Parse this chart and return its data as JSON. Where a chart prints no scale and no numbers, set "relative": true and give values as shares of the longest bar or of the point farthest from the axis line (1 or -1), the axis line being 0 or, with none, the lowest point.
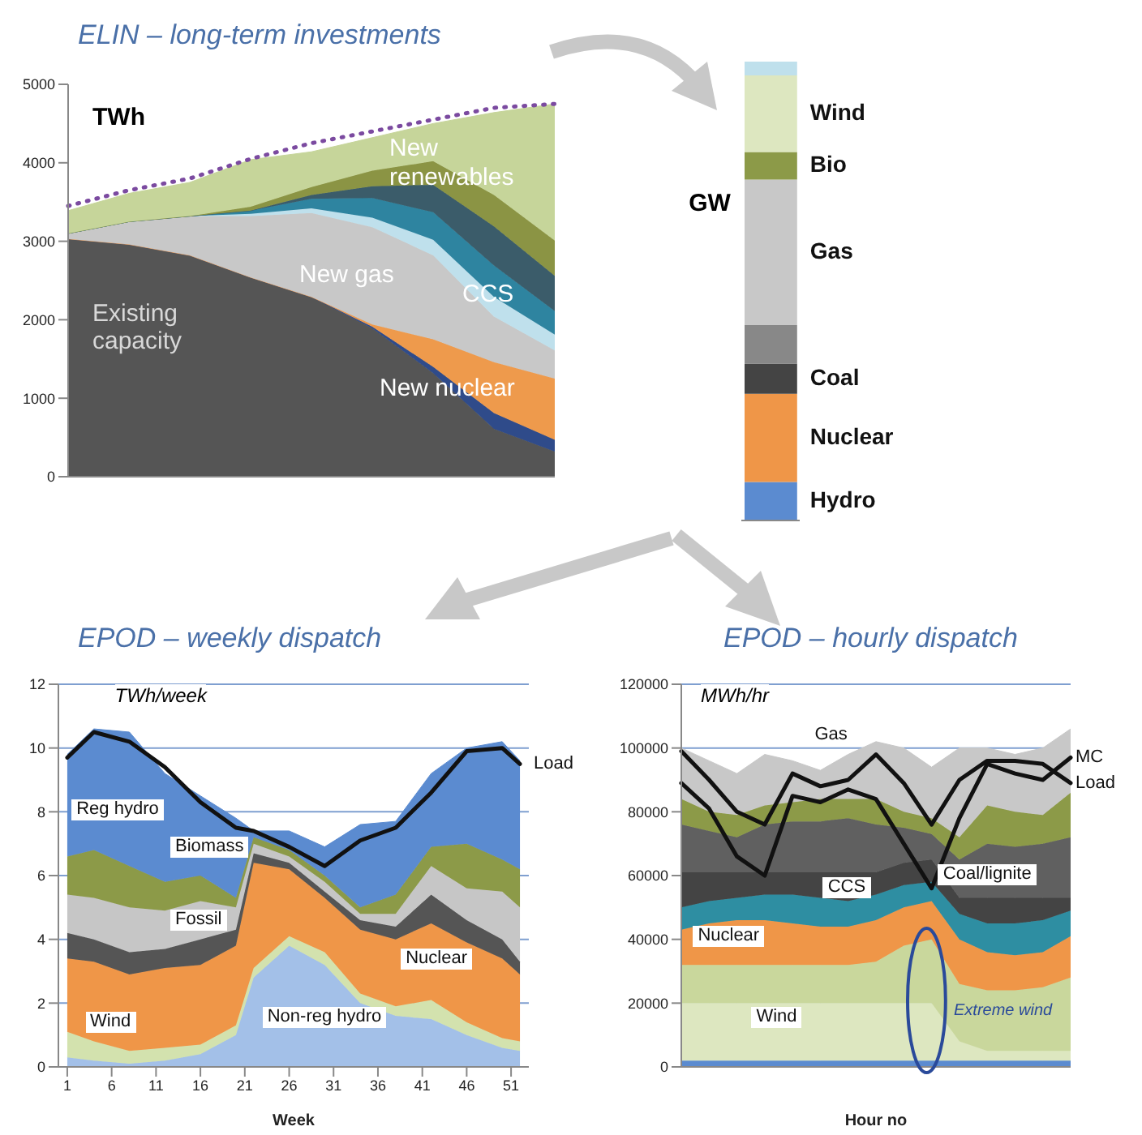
{
  "chart_data": [
    {
      "type": "area",
      "title": "ELIN – long-term investments",
      "ylabel": "TWh",
      "stacked": true,
      "categories": [
        null,
        null,
        null,
        null,
        null,
        null,
        null,
        null,
        null
      ],
      "tick_labels": "y",
      "ylim": [
        0,
        5000
      ],
      "yticks": [
        0,
        1000,
        2000,
        3000,
        4000,
        5000
      ],
      "series": [
        {
          "name": "Existing capacity",
          "color": "#555555",
          "values": [
            3030,
            2960,
            2820,
            2540,
            2290,
            1890,
            1320,
            610,
            320
          ]
        },
        {
          "color": "#2f4b8a",
          "values": [
            0,
            0,
            0,
            0,
            0,
            20,
            80,
            200,
            150
          ]
        },
        {
          "name": "New nuclear",
          "color": "#ee9a4c",
          "values": [
            0,
            0,
            0,
            0,
            0,
            30,
            350,
            650,
            780
          ]
        },
        {
          "name": "New gas",
          "color": "#c8c8c8",
          "values": [
            70,
            290,
            500,
            780,
            1070,
            1240,
            1070,
            580,
            360
          ]
        },
        {
          "color": "#bfe0ec",
          "values": [
            0,
            0,
            0,
            30,
            60,
            120,
            200,
            250,
            200
          ]
        },
        {
          "name": "CCS",
          "color": "#2e84a0",
          "values": [
            0,
            0,
            0,
            40,
            120,
            250,
            350,
            400,
            300
          ]
        },
        {
          "color": "#3b5c6a",
          "values": [
            0,
            0,
            0,
            0,
            50,
            150,
            350,
            500,
            450
          ]
        },
        {
          "color": "#8b9444",
          "values": [
            0,
            0,
            0,
            50,
            100,
            200,
            300,
            400,
            450
          ]
        },
        {
          "name": "New renewables",
          "color": "#c6d59a",
          "values": [
            290,
            360,
            430,
            600,
            450,
            420,
            480,
            1050,
            1740
          ]
        },
        {
          "type": "line",
          "color": "#7b4aa0",
          "line_style": "dotted",
          "values": [
            3450,
            3650,
            3800,
            4050,
            4250,
            4400,
            4550,
            4700,
            4750
          ]
        }
      ]
    },
    {
      "type": "bar",
      "ylabel": "GW",
      "stacked": true,
      "relative": true,
      "categories": [
        null
      ],
      "series": [
        {
          "name": "Hydro",
          "color": "#5b8bd0",
          "values": [
            0.084
          ]
        },
        {
          "name": "Nuclear",
          "color": "#ef9648",
          "values": [
            0.192
          ]
        },
        {
          "name": "Coal",
          "color": "#444444",
          "values": [
            0.066
          ]
        },
        {
          "color": "#888888",
          "values": [
            0.084
          ]
        },
        {
          "name": "Gas",
          "color": "#c8c8c8",
          "values": [
            0.317
          ]
        },
        {
          "name": "Bio",
          "color": "#8c9a48",
          "values": [
            0.06
          ]
        },
        {
          "name": "Wind",
          "color": "#dde7c0",
          "values": [
            0.167
          ]
        },
        {
          "color": "#bfe0ec",
          "values": [
            0.03
          ]
        }
      ]
    },
    {
      "type": "area",
      "title": "EPOD – weekly dispatch",
      "ylabel": "TWh/week",
      "xlabel": "Week",
      "stacked": true,
      "grid": "y",
      "x": [
        1,
        4,
        8,
        12,
        16,
        20,
        22,
        26,
        30,
        34,
        38,
        42,
        46,
        50,
        52
      ],
      "xlim": [
        0,
        53
      ],
      "xticks": [
        1,
        6,
        11,
        16,
        21,
        26,
        31,
        36,
        41,
        46,
        51
      ],
      "ylim": [
        0,
        12
      ],
      "yticks": [
        0,
        2,
        4,
        6,
        8,
        10,
        12
      ],
      "series": [
        {
          "name": "Non-reg hydro",
          "color": "#a3c0e8",
          "values": [
            0.3,
            0.2,
            0.1,
            0.2,
            0.4,
            1.0,
            2.8,
            3.8,
            3.2,
            2.0,
            1.6,
            1.5,
            1.0,
            0.6,
            0.5
          ]
        },
        {
          "name": "Wind",
          "color": "#d3e2ae",
          "values": [
            0.8,
            0.6,
            0.4,
            0.4,
            0.3,
            0.3,
            0.3,
            0.3,
            0.4,
            0.3,
            0.3,
            0.6,
            0.4,
            0.3,
            0.3
          ]
        },
        {
          "name": "Nuclear",
          "color": "#ef9648",
          "values": [
            2.3,
            2.5,
            2.4,
            2.5,
            2.5,
            2.5,
            3.3,
            2.1,
            1.7,
            2.0,
            2.1,
            2.4,
            2.5,
            2.5,
            2.1
          ]
        },
        {
          "color": "#555555",
          "values": [
            0.8,
            0.7,
            0.7,
            0.6,
            0.8,
            0.5,
            0.3,
            0.2,
            0.2,
            0.3,
            0.4,
            0.9,
            0.7,
            0.6,
            0.4
          ]
        },
        {
          "name": "Fossil",
          "color": "#c6c6c6",
          "values": [
            1.2,
            1.3,
            1.4,
            1.2,
            1.2,
            0.7,
            0.3,
            0.2,
            0.3,
            0.2,
            0.4,
            0.9,
            1.0,
            1.5,
            1.7
          ]
        },
        {
          "name": "Biomass",
          "color": "#8c9a48",
          "values": [
            1.2,
            1.5,
            1.3,
            0.9,
            0.8,
            0.3,
            0.2,
            0.2,
            0.2,
            0.2,
            0.6,
            0.6,
            1.4,
            1.0,
            1.2
          ]
        },
        {
          "name": "Reg hydro",
          "color": "#5b8bd0",
          "values": [
            3.2,
            3.8,
            4.2,
            3.4,
            2.5,
            2.5,
            0.2,
            0.6,
            0.9,
            2.6,
            2.3,
            2.3,
            3.0,
            3.7,
            3.4
          ]
        },
        {
          "type": "line",
          "name": "Load",
          "color": "#111111",
          "values": [
            9.7,
            10.5,
            10.2,
            9.4,
            8.3,
            7.5,
            7.4,
            6.9,
            6.3,
            7.1,
            7.5,
            8.6,
            9.9,
            10.0,
            9.5
          ]
        }
      ]
    },
    {
      "type": "area",
      "title": "EPOD – hourly dispatch",
      "ylabel": "MWh/hr",
      "xlabel": "Hour no",
      "stacked": true,
      "grid": "y",
      "categories": [
        null,
        null,
        null,
        null,
        null,
        null,
        null,
        null,
        null,
        null,
        null,
        null,
        null,
        null,
        null
      ],
      "tick_labels": "y",
      "ylim": [
        0,
        120000
      ],
      "yticks": [
        0,
        20000,
        40000,
        60000,
        80000,
        100000,
        120000
      ],
      "annotations": [
        "Extreme wind"
      ],
      "series": [
        {
          "color": "#5b8bd0",
          "values": [
            2000,
            2000,
            2000,
            2000,
            2000,
            2000,
            2000,
            2000,
            2000,
            2000,
            2000,
            2000,
            2000,
            2000,
            2000
          ]
        },
        {
          "name": "Wind",
          "color": "#dde7c0",
          "values": [
            18000,
            18000,
            18000,
            18000,
            18000,
            18000,
            18000,
            18000,
            18000,
            18000,
            6000,
            3000,
            3000,
            3000,
            3000
          ]
        },
        {
          "color": "#c9d79c",
          "values": [
            12000,
            12000,
            12000,
            12000,
            12000,
            12000,
            12000,
            13000,
            18000,
            20000,
            18000,
            19000,
            19000,
            20000,
            23000
          ]
        },
        {
          "name": "Nuclear",
          "color": "#ef9648",
          "values": [
            11000,
            13000,
            14000,
            14000,
            13000,
            12000,
            12000,
            13000,
            12000,
            12000,
            14000,
            12000,
            11000,
            11000,
            13000
          ]
        },
        {
          "name": "CCS",
          "color": "#2e8ea2",
          "values": [
            7000,
            7000,
            7000,
            8000,
            9000,
            9000,
            8000,
            8000,
            7000,
            6000,
            8000,
            9000,
            10000,
            10000,
            8000
          ]
        },
        {
          "name": "Coal/lignite",
          "color": "#444444",
          "values": [
            11000,
            9000,
            8000,
            7000,
            7000,
            8000,
            9000,
            7000,
            7000,
            7000,
            5000,
            8000,
            8000,
            7000,
            4000
          ]
        },
        {
          "color": "#606060",
          "values": [
            15000,
            13000,
            11000,
            15000,
            16000,
            16000,
            17000,
            15000,
            11000,
            8000,
            12000,
            17000,
            16000,
            17000,
            19000
          ]
        },
        {
          "color": "#8c9a48",
          "values": [
            8000,
            6000,
            7000,
            6000,
            6000,
            7000,
            6000,
            8000,
            5000,
            5000,
            7000,
            12000,
            11000,
            9000,
            14000
          ]
        },
        {
          "name": "Gas",
          "color": "#c8c8c8",
          "values": [
            16000,
            16000,
            13000,
            16000,
            13000,
            9000,
            14000,
            18000,
            20000,
            16000,
            28000,
            18000,
            18000,
            21000,
            20000
          ]
        },
        {
          "type": "line",
          "name": "MC",
          "color": "#111111",
          "values": [
            89000,
            81000,
            66000,
            60000,
            85000,
            83000,
            87000,
            84000,
            70000,
            56000,
            78000,
            95000,
            92000,
            90000,
            97000
          ]
        },
        {
          "type": "line",
          "name": "Load",
          "color": "#111111",
          "values": [
            99000,
            90000,
            80000,
            76000,
            92000,
            88000,
            90000,
            98000,
            89000,
            76000,
            90000,
            96000,
            96000,
            95000,
            89000
          ]
        }
      ]
    }
  ]
}
